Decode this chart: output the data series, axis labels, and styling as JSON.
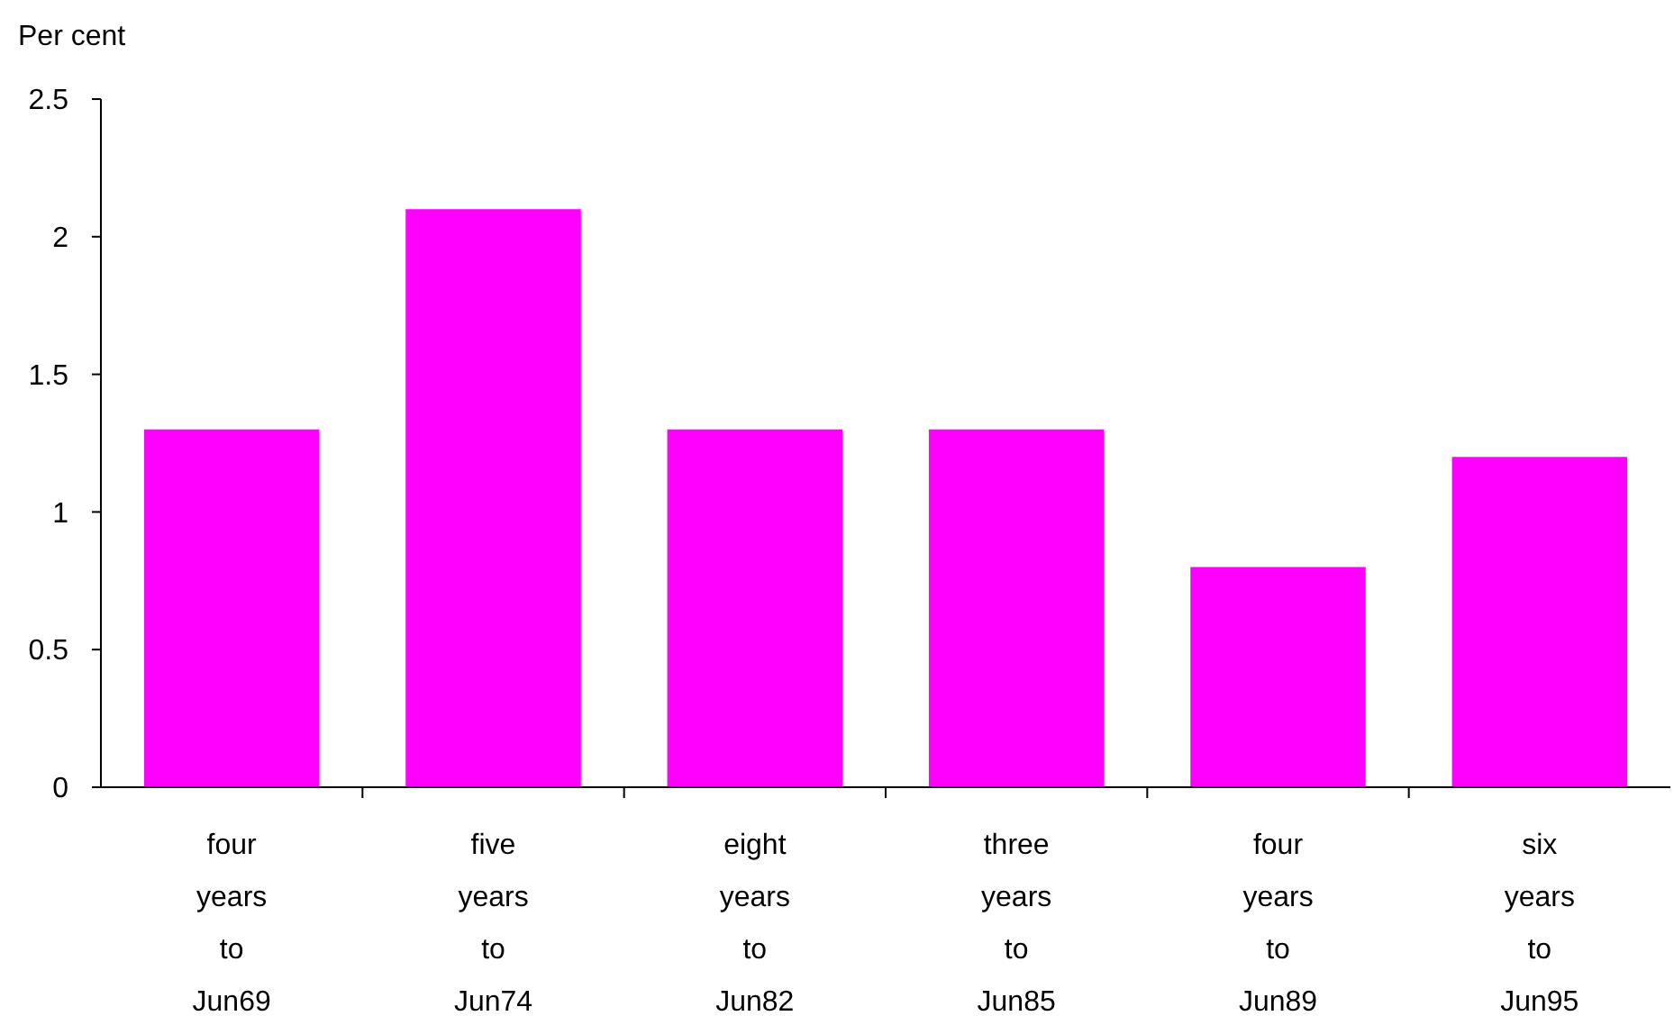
{
  "chart_data": {
    "type": "bar",
    "ylabel": "Per cent",
    "categories": [
      "four years to Jun69",
      "five years to Jun74",
      "eight years to Jun82",
      "three years to Jun85",
      "four years to Jun89",
      "six years to Jun95"
    ],
    "values": [
      1.3,
      2.1,
      1.3,
      1.3,
      0.8,
      1.2
    ],
    "color": "#ff00ff",
    "ylim": [
      0,
      2.5
    ],
    "yticks": [
      0,
      {
        "value": 0.5,
        "label": "0.5"
      },
      1,
      {
        "value": 1.5,
        "label": "1.5"
      },
      2,
      {
        "value": 2.5,
        "label": "2.5"
      }
    ],
    "grid": false
  }
}
